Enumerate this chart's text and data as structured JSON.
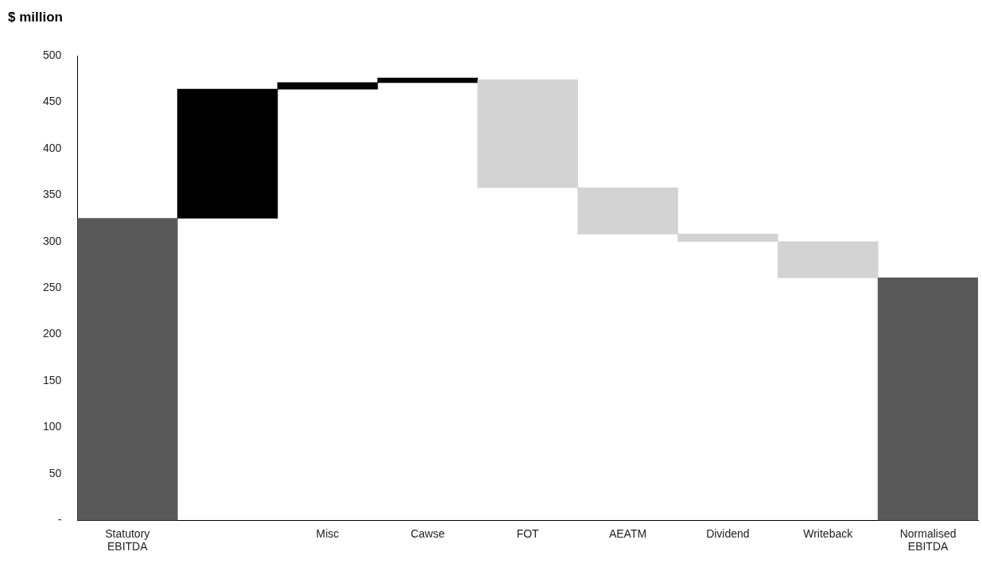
{
  "chart_data": {
    "type": "bar",
    "title": "$ million",
    "categories": [
      "Statutory EBITDA",
      null,
      "Misc",
      "Cawse",
      "FOT",
      "AEATM",
      "Dividend",
      "Writeback",
      "Normalised EBITDA"
    ],
    "values": [
      325,
      139,
      7,
      5,
      -116,
      -50,
      -8,
      -39,
      261
    ],
    "base": [
      0,
      325,
      464,
      471,
      474,
      358,
      308,
      300,
      0
    ],
    "colors": [
      "#595959",
      "#000000",
      "#000000",
      "#000000",
      "#d3d3d3",
      "#d3d3d3",
      "#d3d3d3",
      "#d3d3d3",
      "#595959"
    ],
    "ylim": [
      0,
      500
    ],
    "yticks": [
      {
        "value": 0,
        "label": "-"
      },
      50,
      100,
      150,
      200,
      250,
      300,
      350,
      400,
      450,
      500
    ]
  }
}
